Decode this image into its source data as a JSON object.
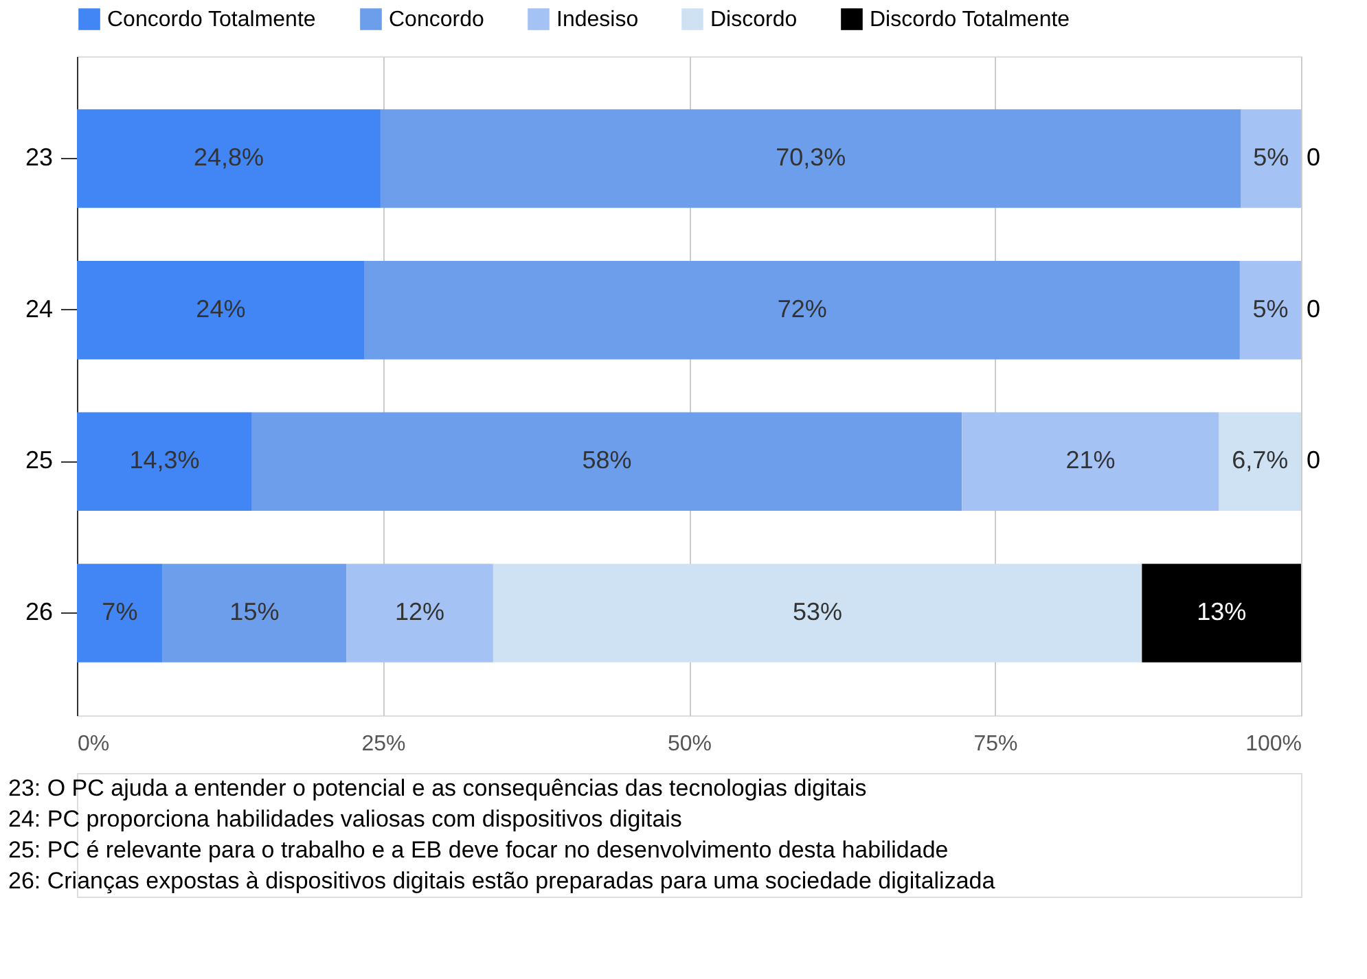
{
  "chart_data": {
    "type": "bar",
    "orientation": "horizontal",
    "stacked": true,
    "categories": [
      "23",
      "24",
      "25",
      "26"
    ],
    "series": [
      {
        "name": "Concordo Totalmente",
        "color": "#4285f4",
        "values": [
          24.8,
          23.5,
          14.3,
          7
        ],
        "value_labels": [
          "24,8%",
          "24%",
          "14,3%",
          "7%"
        ]
      },
      {
        "name": "Concordo",
        "color": "#6d9eeb",
        "values": [
          70.3,
          71.5,
          58,
          15
        ],
        "value_labels": [
          "70,3%",
          "72%",
          "58%",
          "15%"
        ]
      },
      {
        "name": "Indesiso",
        "color": "#a4c2f4",
        "values": [
          4.9,
          5.0,
          21,
          12
        ],
        "value_labels": [
          "5%",
          "5%",
          "21%",
          "12%"
        ]
      },
      {
        "name": "Discordo",
        "color": "#cfe2f3",
        "values": [
          0,
          0,
          6.7,
          53
        ],
        "value_labels": [
          null,
          null,
          "6,7%",
          "53%"
        ]
      },
      {
        "name": "Discordo Totalmente",
        "color": "#000000",
        "values": [
          0,
          0,
          0,
          13
        ],
        "value_labels": [
          "0",
          "0",
          "0",
          "13%"
        ]
      }
    ],
    "xlim": [
      0,
      100
    ],
    "xticks": [
      {
        "value": 0,
        "label": "0%"
      },
      {
        "value": 25,
        "label": "25%"
      },
      {
        "value": 50,
        "label": "50%"
      },
      {
        "value": 75,
        "label": "75%"
      },
      {
        "value": 100,
        "label": "100%"
      }
    ],
    "grid": "x",
    "legend": "top",
    "annotations": [
      "23: O PC ajuda a entender o potencial e as consequências das tecnologias digitais",
      "24: PC proporciona habilidades valiosas com dispositivos digitais",
      "25: PC é relevante para o trabalho e a EB deve focar no desenvolvimento desta habilidade",
      "26: Crianças expostas à dispositivos digitais estão preparadas para uma sociedade digitalizada"
    ]
  }
}
